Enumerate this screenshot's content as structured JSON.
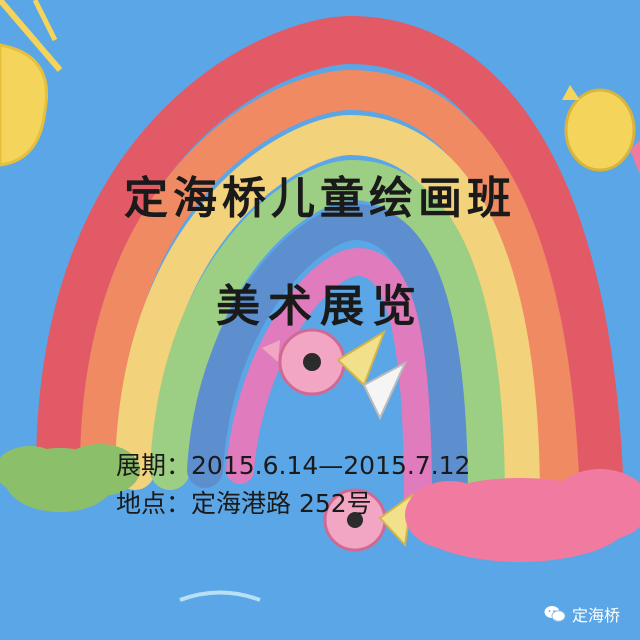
{
  "title": {
    "line1": "定海桥儿童绘画班",
    "line2": "美术展览"
  },
  "info": {
    "dates": "展期：2015.6.14—2015.7.12",
    "venue": "地点：定海港路 252号"
  },
  "watermark": {
    "label": "定海桥",
    "icon": "wechat-icon"
  },
  "colors": {
    "background": "#5aa6e6",
    "rainbow": [
      "#e25a66",
      "#ef8a63",
      "#f2d27a",
      "#9ccf83",
      "#5d8fcf",
      "#e07bbd"
    ],
    "text": "#1a1a1a"
  }
}
